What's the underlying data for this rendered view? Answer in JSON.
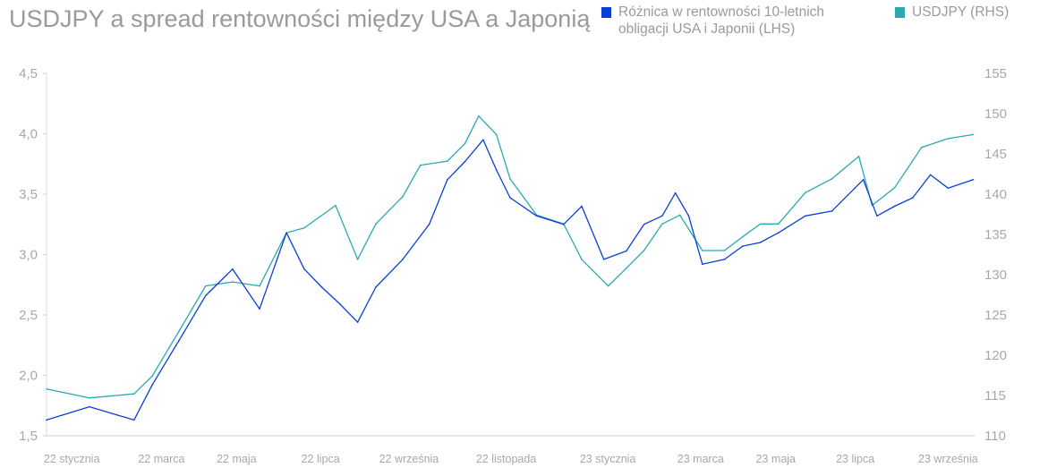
{
  "chart_data": {
    "type": "line",
    "title": "USDJPY a spread rentowności między USA a Japonią",
    "legend_placement": "top-right",
    "x_unit": "months since early Jan 2022",
    "x_range": [
      0,
      21
    ],
    "x_ticks": [
      {
        "label": "22 stycznia",
        "x": 0.57
      },
      {
        "label": "22 marca",
        "x": 2.6
      },
      {
        "label": "22 maja",
        "x": 4.3
      },
      {
        "label": "22 lipca",
        "x": 6.2
      },
      {
        "label": "22 września",
        "x": 8.2
      },
      {
        "label": "22 listopada",
        "x": 10.4
      },
      {
        "label": "23 stycznia",
        "x": 12.7
      },
      {
        "label": "23 marca",
        "x": 14.8
      },
      {
        "label": "23 maja",
        "x": 16.5
      },
      {
        "label": "23 lipca",
        "x": 18.3
      },
      {
        "label": "23 września",
        "x": 20.4
      }
    ],
    "y_left": {
      "range": [
        1.5,
        4.5
      ],
      "ticks": [
        "4,5",
        "4,0",
        "3,5",
        "3,0",
        "2,5",
        "2,0",
        "1,5"
      ],
      "tick_values": [
        4.5,
        4.0,
        3.5,
        3.0,
        2.5,
        2.0,
        1.5
      ]
    },
    "y_right": {
      "range": [
        110,
        155
      ],
      "ticks": [
        "155",
        "150",
        "145",
        "140",
        "135",
        "130",
        "125",
        "120",
        "115",
        "110"
      ],
      "tick_values": [
        155,
        150,
        145,
        140,
        135,
        130,
        125,
        120,
        115,
        110
      ]
    },
    "series": [
      {
        "name": "Różnica w rentowności 10-letnich obligacji USA i Japonii (LHS)",
        "legend_lines": [
          "Różnica w rentowności 10-letnich",
          "obligacji USA i Japonii (LHS)"
        ],
        "axis": "left",
        "color": "#0a3fd6",
        "x": [
          0,
          0.97,
          1.98,
          2.39,
          3.0,
          3.6,
          4.21,
          4.82,
          5.43,
          5.83,
          6.23,
          6.64,
          7.04,
          7.45,
          8.06,
          8.66,
          9.07,
          9.47,
          9.88,
          10.18,
          10.49,
          11.09,
          11.7,
          12.11,
          12.61,
          13.12,
          13.52,
          13.93,
          14.23,
          14.53,
          14.84,
          15.34,
          15.75,
          16.15,
          16.56,
          17.17,
          17.77,
          18.48,
          18.79,
          19.19,
          19.6,
          20.0,
          20.4,
          20.97
        ],
        "values": [
          1.63,
          1.74,
          1.63,
          1.92,
          2.29,
          2.66,
          2.88,
          2.55,
          3.18,
          2.88,
          2.73,
          2.59,
          2.44,
          2.73,
          2.96,
          3.25,
          3.62,
          3.77,
          3.95,
          3.7,
          3.47,
          3.32,
          3.25,
          3.4,
          2.96,
          3.03,
          3.25,
          3.32,
          3.51,
          3.32,
          2.92,
          2.96,
          3.07,
          3.1,
          3.18,
          3.32,
          3.36,
          3.62,
          3.32,
          3.4,
          3.47,
          3.66,
          3.55,
          3.62
        ]
      },
      {
        "name": "USDJPY (RHS)",
        "legend_lines": [
          "USDJPY (RHS)"
        ],
        "axis": "right",
        "color": "#2aa9b0",
        "x": [
          0,
          0.97,
          1.98,
          2.39,
          3.0,
          3.6,
          4.21,
          4.82,
          5.43,
          5.83,
          6.54,
          7.04,
          7.45,
          8.06,
          8.46,
          9.07,
          9.47,
          9.78,
          10.18,
          10.49,
          11.09,
          11.7,
          12.11,
          12.71,
          13.12,
          13.52,
          13.93,
          14.33,
          14.84,
          15.34,
          15.75,
          16.15,
          16.56,
          17.17,
          17.77,
          18.38,
          18.68,
          19.19,
          19.8,
          20.4,
          20.97
        ],
        "values": [
          115.8,
          114.7,
          115.2,
          117.4,
          123.0,
          128.6,
          129.1,
          128.6,
          135.2,
          135.8,
          138.6,
          131.9,
          136.3,
          139.7,
          143.6,
          144.1,
          146.3,
          149.7,
          147.4,
          141.9,
          137.4,
          136.3,
          131.9,
          128.6,
          130.8,
          133.0,
          136.3,
          137.4,
          133.0,
          133.0,
          134.7,
          136.3,
          136.3,
          140.2,
          141.9,
          144.7,
          138.6,
          140.8,
          145.8,
          146.9,
          147.4
        ]
      }
    ]
  }
}
